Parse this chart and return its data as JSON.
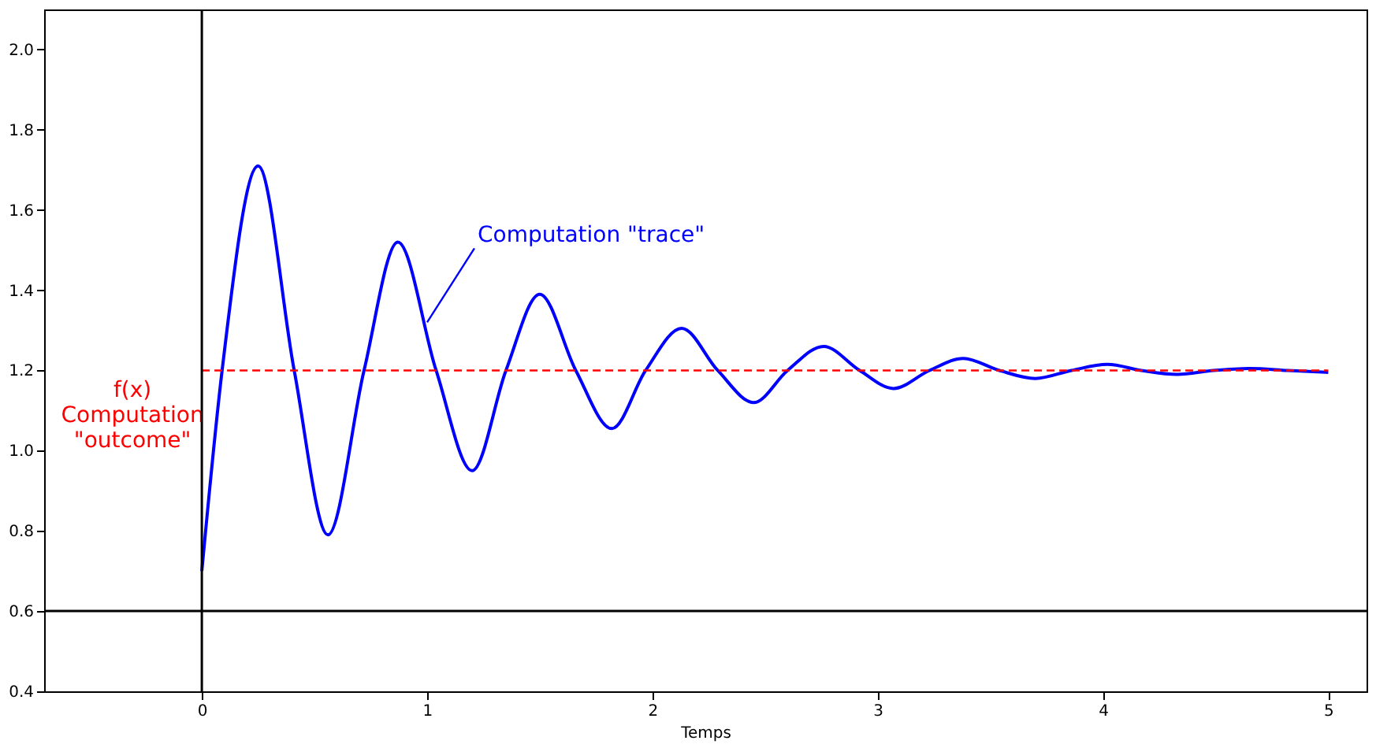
{
  "chart_data": {
    "type": "line",
    "xlabel": "Temps",
    "x": [
      0,
      0.09,
      0.25,
      0.41,
      0.56,
      0.72,
      0.87,
      1.04,
      1.2,
      1.35,
      1.5,
      1.66,
      1.82,
      1.97,
      2.13,
      2.29,
      2.45,
      2.6,
      2.76,
      2.92,
      3.07,
      3.23,
      3.38,
      3.54,
      3.7,
      3.86,
      4.02,
      4.17,
      4.33,
      4.49,
      4.65,
      4.82,
      5
    ],
    "series": [
      {
        "color": "#0000ff",
        "values": [
          0.7,
          1.2,
          1.71,
          1.2,
          0.79,
          1.2,
          1.52,
          1.2,
          0.95,
          1.2,
          1.39,
          1.2,
          1.055,
          1.2,
          1.305,
          1.2,
          1.12,
          1.2,
          1.26,
          1.2,
          1.155,
          1.2,
          1.23,
          1.2,
          1.18,
          1.2,
          1.215,
          1.2,
          1.19,
          1.2,
          1.205,
          1.2,
          1.195
        ]
      }
    ],
    "xlim": [
      -0.7,
      5.17
    ],
    "ylim": [
      0.4,
      2.1
    ],
    "xticks": [
      0,
      1,
      2,
      3,
      4,
      5
    ],
    "yticks": [
      0.4,
      0.6,
      0.8,
      {
        "value": 1,
        "label": "1.0"
      },
      1.2,
      1.4,
      1.6,
      1.8,
      {
        "value": 2,
        "label": "2.0"
      }
    ],
    "ref_lines": [
      {
        "axis": "y",
        "value": 1.2,
        "label": "f(x)\nComputation\n\"outcome\"",
        "color": "#ff0000",
        "line_style": "dashed"
      },
      {
        "axis": "x",
        "value": 0,
        "color": "#000000",
        "line_style": "solid"
      },
      {
        "axis": "y",
        "value": 0.6,
        "color": "#000000",
        "line_style": "solid"
      }
    ],
    "annotations": [
      {
        "text": "Computation \"trace\"",
        "x": 1.0,
        "y": 1.32
      }
    ],
    "grid": false,
    "line_style": "solid",
    "marker": "none"
  }
}
